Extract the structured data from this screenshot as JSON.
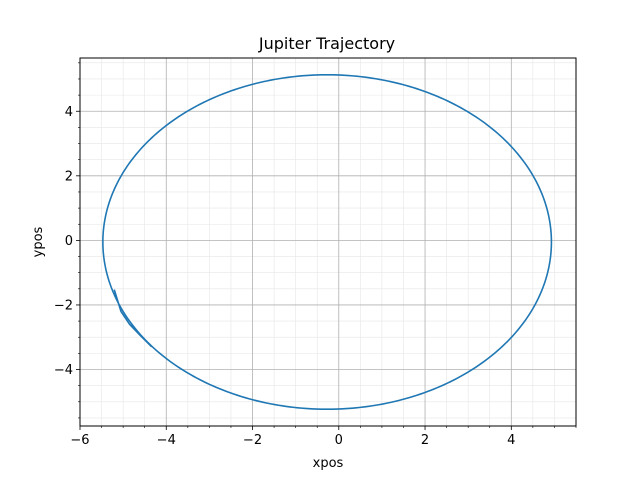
{
  "chart_data": {
    "type": "line",
    "title": "Jupiter Trajectory",
    "xlabel": "xpos",
    "ylabel": "ypos",
    "xlim": [
      -6,
      5.5
    ],
    "ylim": [
      -5.75,
      5.65
    ],
    "x_ticks": [
      -6,
      -4,
      -2,
      0,
      2,
      4
    ],
    "y_ticks": [
      -4,
      -2,
      0,
      2,
      4
    ],
    "x_tick_labels": [
      "−6",
      "−4",
      "−2",
      "0",
      "2",
      "4"
    ],
    "y_tick_labels": [
      "−4",
      "−2",
      "0",
      "2",
      "4"
    ],
    "grid": true,
    "minor_grid": true,
    "legend": "none",
    "series": [
      {
        "color": "#1f77b4",
        "orbit": {
          "center": [
            -0.27,
            -0.05
          ],
          "semi_axis_x": 5.2,
          "semi_axis_y": 5.18,
          "start_point": [
            -4.35,
            -3.28
          ],
          "direction": "counterclockwise"
        },
        "end_segment": [
          [
            -4.35,
            -3.28
          ],
          [
            -4.6,
            -2.95
          ],
          [
            -4.85,
            -2.6
          ],
          [
            -5.05,
            -2.2
          ],
          [
            -5.2,
            -1.55
          ]
        ]
      }
    ]
  }
}
